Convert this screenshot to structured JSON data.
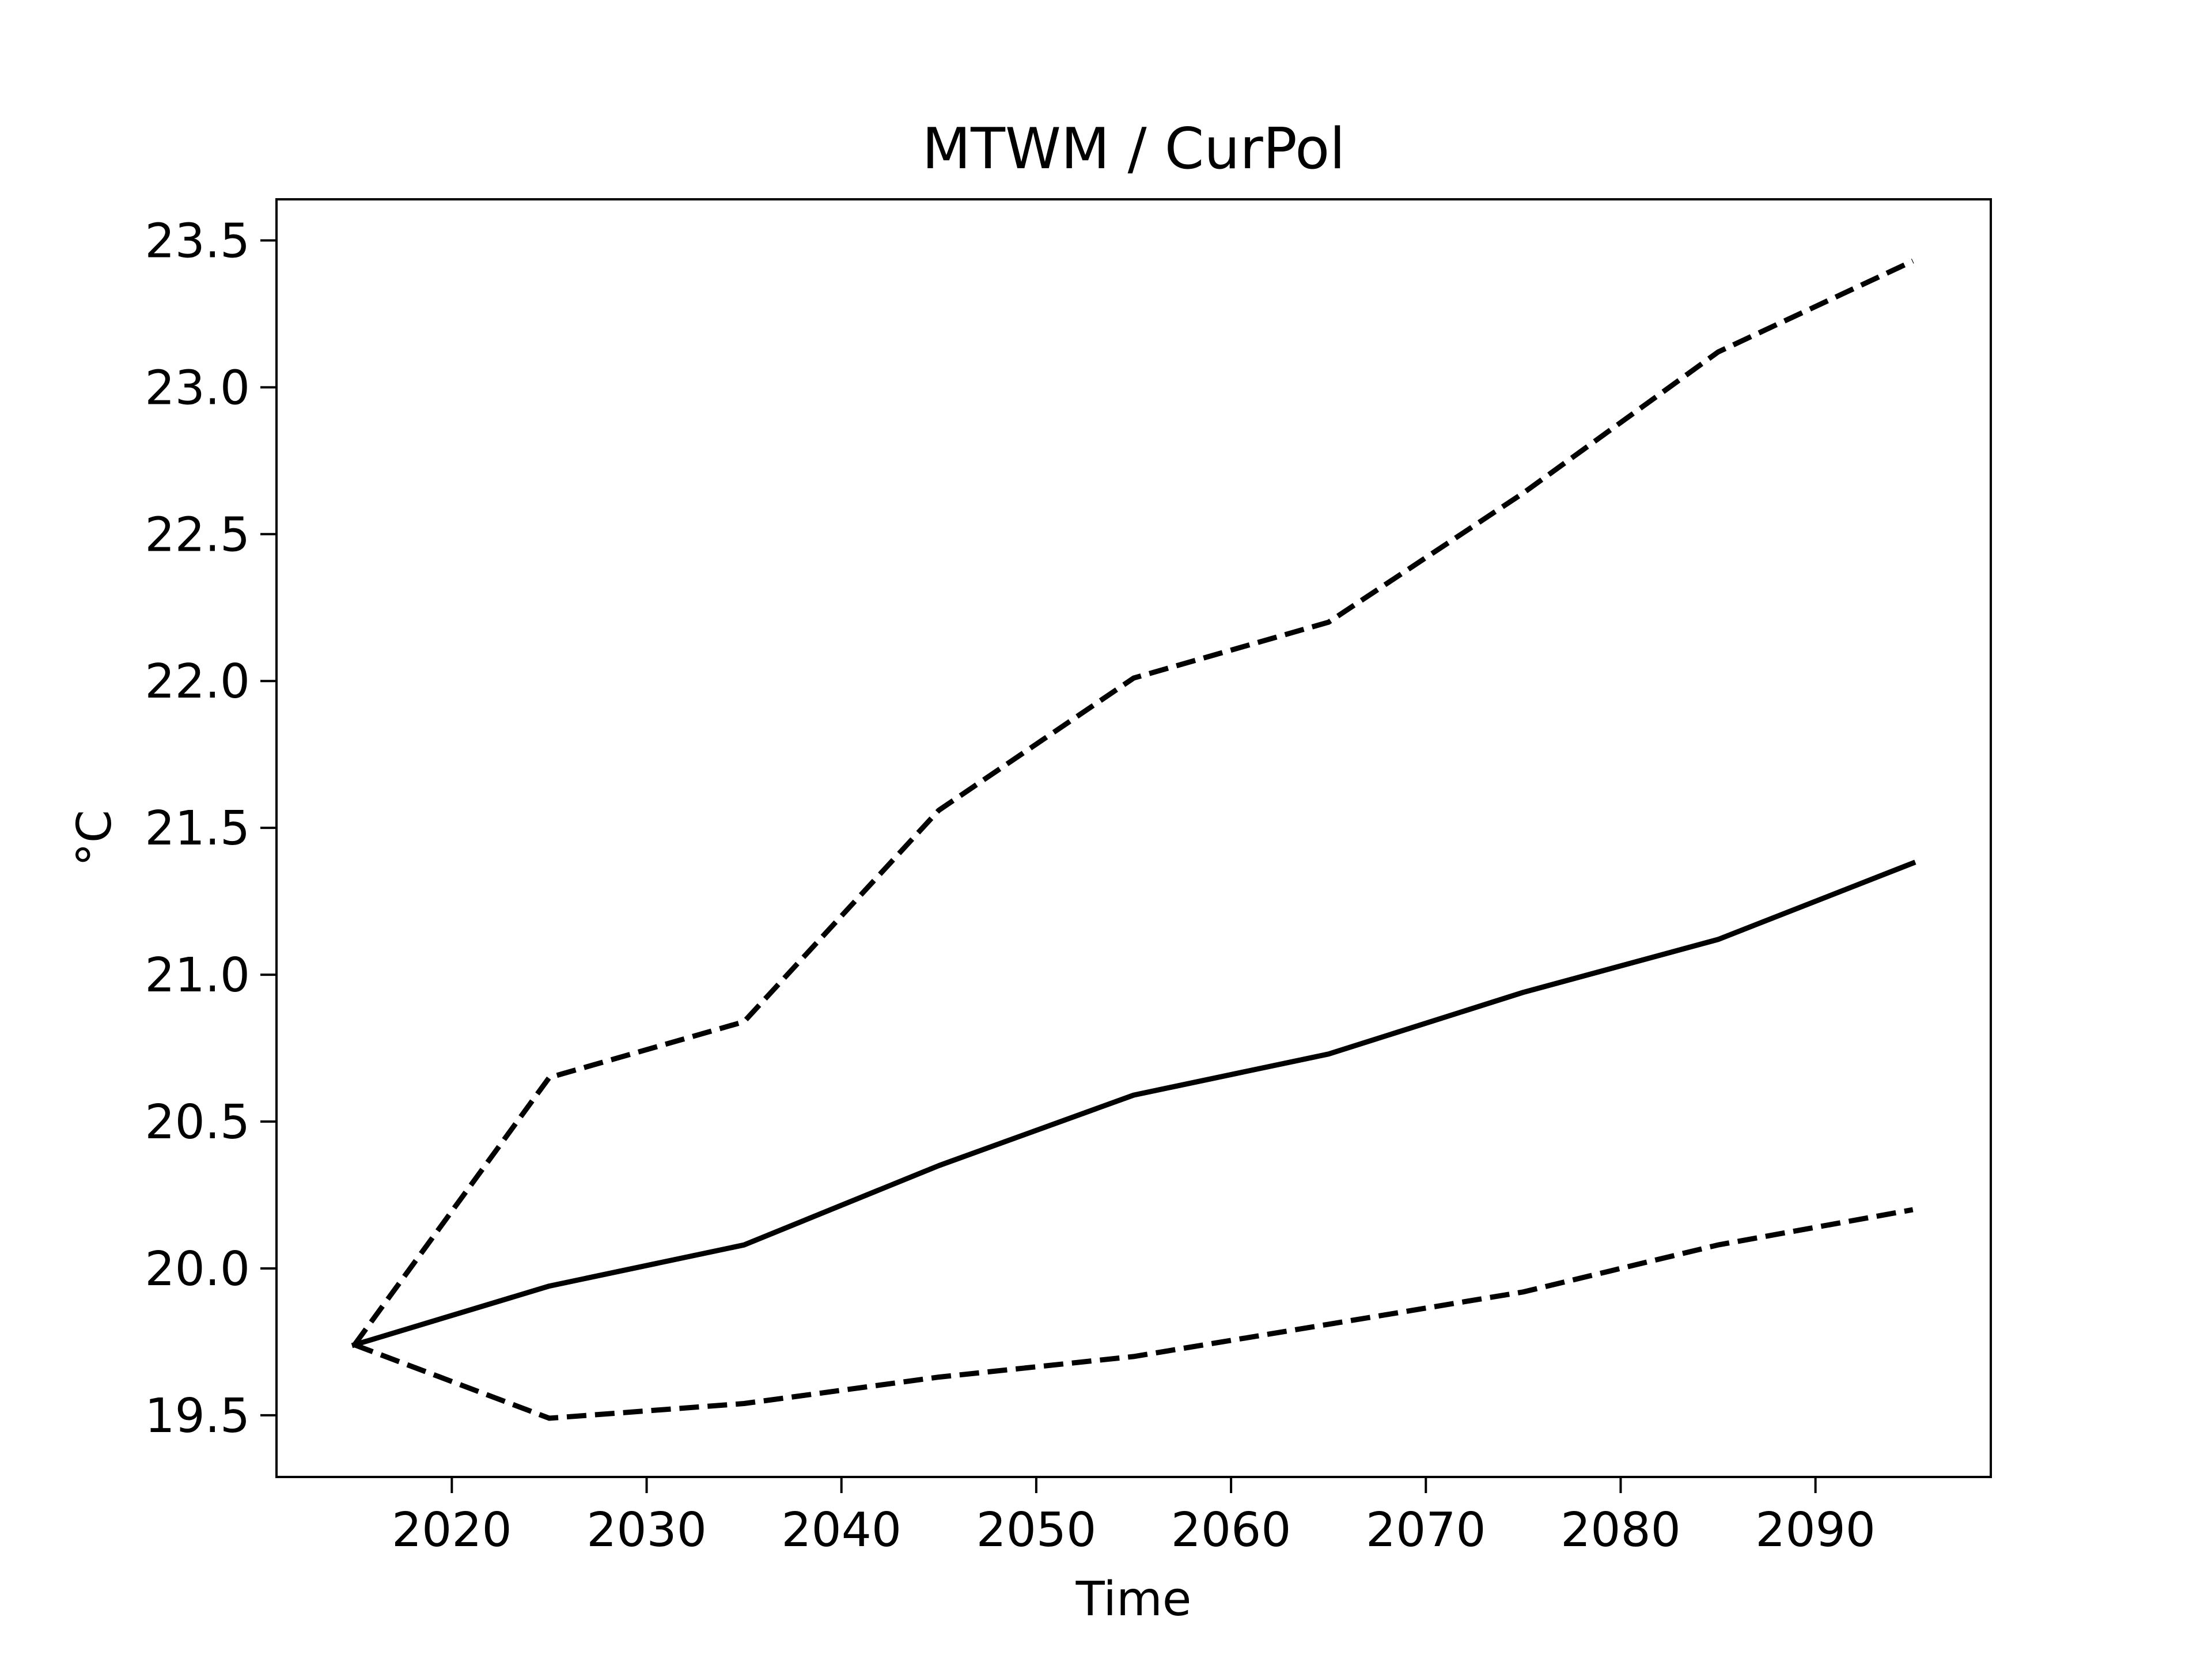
{
  "chart_data": {
    "type": "line",
    "title": "MTWM / CurPol",
    "xlabel": "Time",
    "ylabel": "°C",
    "xlim": [
      2011,
      2099
    ],
    "ylim": [
      19.29,
      23.64
    ],
    "x_ticks": [
      2020,
      2030,
      2040,
      2050,
      2060,
      2070,
      2080,
      2090
    ],
    "x_tick_labels": [
      "2020",
      "2030",
      "2040",
      "2050",
      "2060",
      "2070",
      "2080",
      "2090"
    ],
    "y_ticks": [
      19.5,
      20.0,
      20.5,
      21.0,
      21.5,
      22.0,
      22.5,
      23.0,
      23.5
    ],
    "y_tick_labels": [
      "19.5",
      "20.0",
      "20.5",
      "21.0",
      "21.5",
      "22.0",
      "22.5",
      "23.0",
      "23.5"
    ],
    "x": [
      2015,
      2025,
      2035,
      2045,
      2055,
      2065,
      2075,
      2085,
      2095
    ],
    "grid": false,
    "legend": "none",
    "series": [
      {
        "key": "median",
        "style": "solid",
        "color": "#000000",
        "values": [
          19.74,
          19.94,
          20.08,
          20.35,
          20.59,
          20.73,
          20.94,
          21.12,
          21.38
        ]
      },
      {
        "key": "upper",
        "style": "dashed",
        "color": "#000000",
        "values": [
          19.74,
          20.65,
          20.84,
          21.56,
          22.01,
          22.2,
          22.64,
          23.12,
          23.43
        ]
      },
      {
        "key": "lower",
        "style": "dashed",
        "color": "#000000",
        "values": [
          19.74,
          19.49,
          19.54,
          19.63,
          19.7,
          19.81,
          19.92,
          20.08,
          20.2
        ]
      }
    ]
  }
}
